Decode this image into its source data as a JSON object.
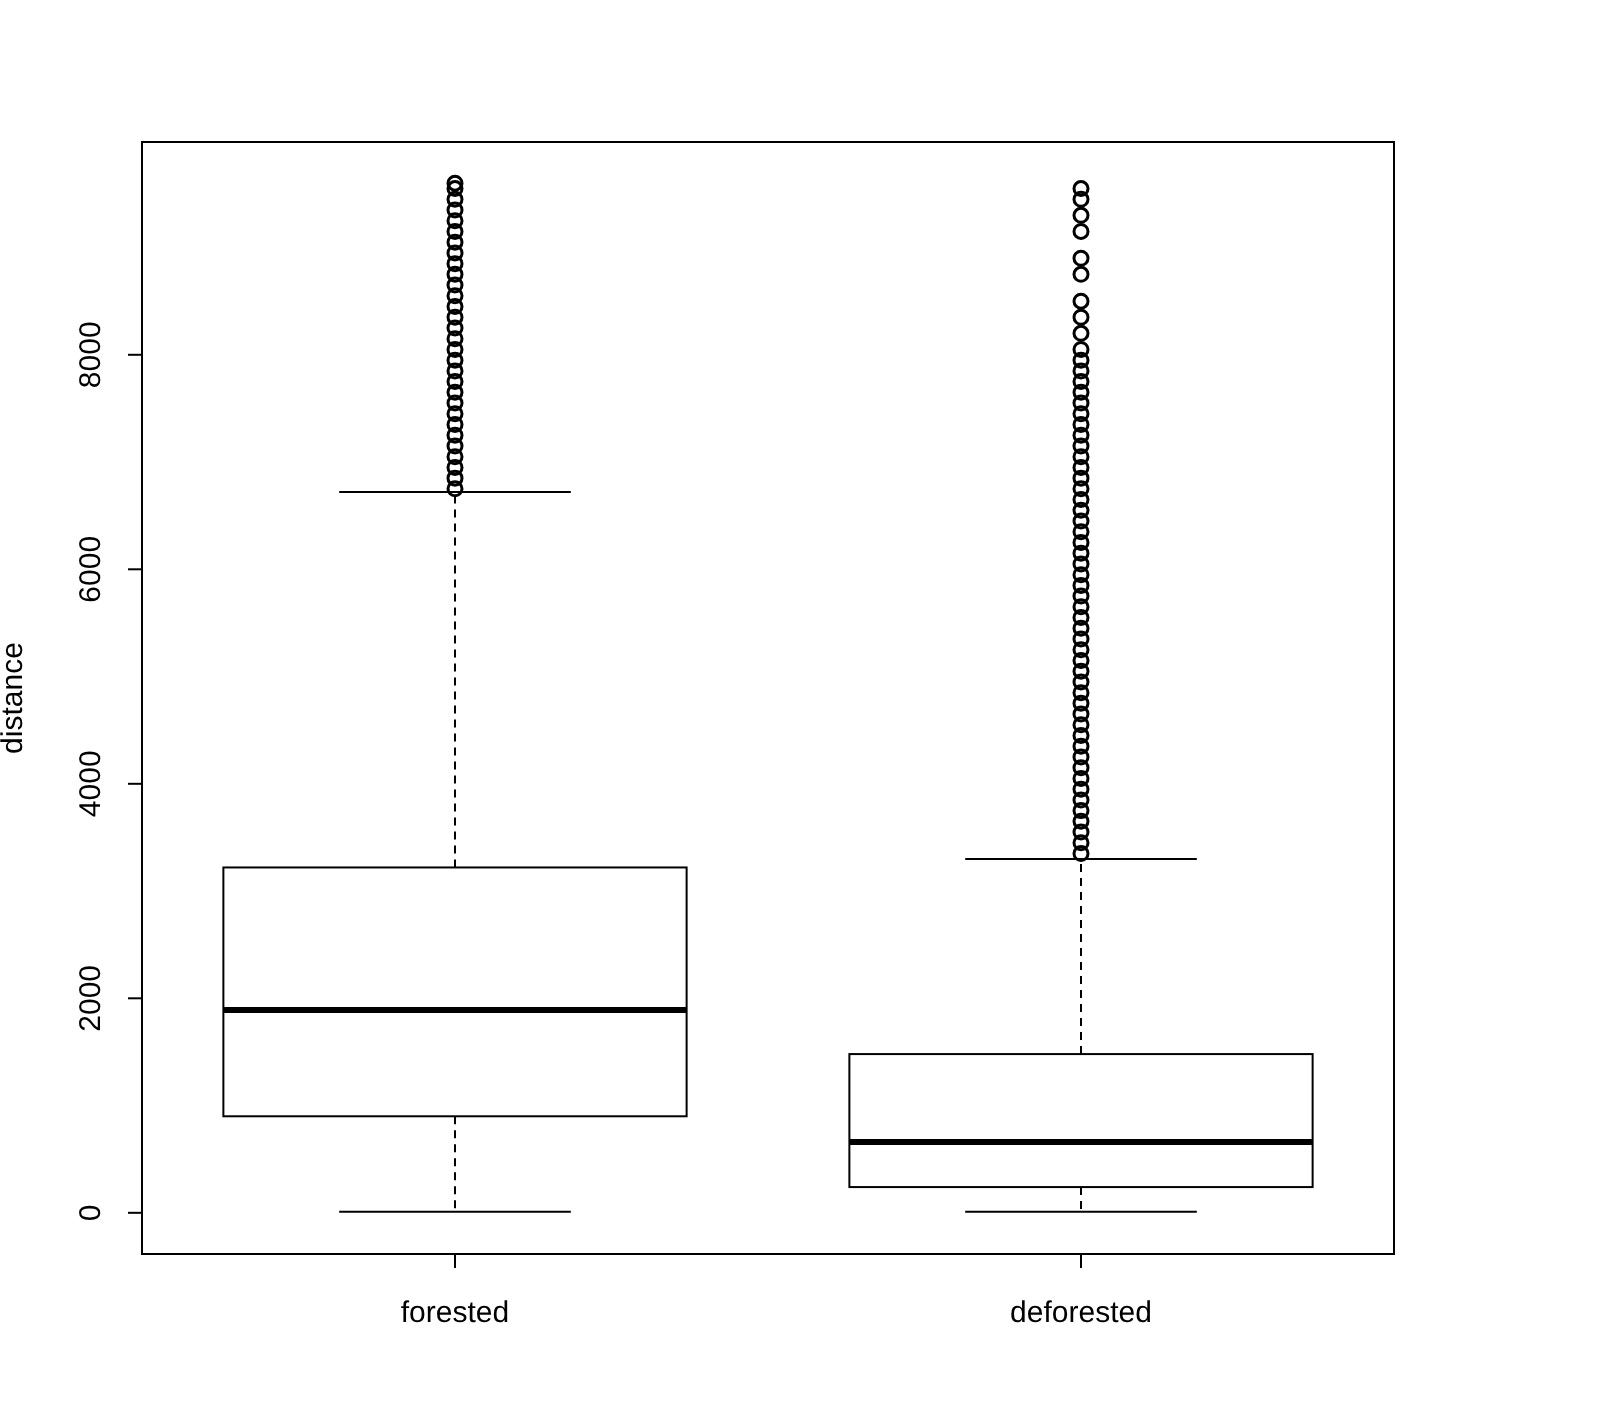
{
  "chart_data": {
    "type": "box",
    "ylabel": "distance",
    "categories": [
      "forested",
      "deforested"
    ],
    "ylim": [
      -384,
      9984
    ],
    "yticks": [
      0,
      2000,
      4000,
      6000,
      8000
    ],
    "grid": false,
    "boxes": [
      {
        "low": 10,
        "q1": 900,
        "median": 1890,
        "q3": 3220,
        "high": 6720,
        "outliers": [
          6750,
          6850,
          6950,
          7050,
          7150,
          7250,
          7350,
          7450,
          7550,
          7650,
          7750,
          7850,
          7950,
          8050,
          8150,
          8250,
          8350,
          8450,
          8550,
          8650,
          8750,
          8850,
          8950,
          9050,
          9150,
          9250,
          9350,
          9450,
          9550,
          9600
        ]
      },
      {
        "low": 10,
        "q1": 240,
        "median": 660,
        "q3": 1480,
        "high": 3300,
        "outliers": [
          3350,
          3450,
          3550,
          3650,
          3750,
          3850,
          3950,
          4050,
          4150,
          4250,
          4350,
          4450,
          4550,
          4650,
          4750,
          4850,
          4950,
          5050,
          5150,
          5250,
          5350,
          5450,
          5550,
          5650,
          5750,
          5850,
          5950,
          6050,
          6150,
          6250,
          6350,
          6450,
          6550,
          6650,
          6750,
          6850,
          6950,
          7050,
          7150,
          7250,
          7350,
          7450,
          7550,
          7650,
          7750,
          7850,
          7950,
          8050,
          8200,
          8350,
          8500,
          8750,
          8900,
          9150,
          9300,
          9450,
          9550
        ]
      }
    ]
  }
}
